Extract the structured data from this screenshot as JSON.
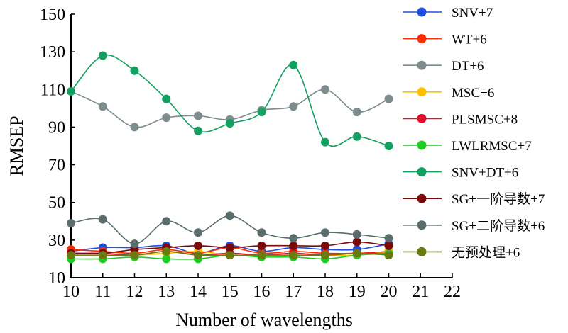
{
  "chart_data": {
    "type": "line",
    "xlabel": "Number of wavelengths",
    "ylabel": "RMSEP",
    "xlim": [
      10,
      22
    ],
    "ylim": [
      10,
      150
    ],
    "x_ticks": [
      10,
      11,
      12,
      13,
      14,
      15,
      16,
      17,
      18,
      19,
      20,
      21,
      22
    ],
    "y_ticks": [
      10,
      30,
      50,
      70,
      90,
      110,
      130,
      150
    ],
    "legend_position": "right",
    "grid": false,
    "x": [
      10,
      11,
      12,
      13,
      14,
      15,
      16,
      17,
      18,
      19,
      20
    ],
    "series": [
      {
        "name": "SNV+7",
        "color": "#1f4fe0",
        "values": [
          24,
          26,
          26,
          27,
          23,
          27,
          24,
          26,
          25,
          25,
          28
        ]
      },
      {
        "name": "WT+6",
        "color": "#ff2a00",
        "values": [
          25,
          24,
          23,
          25,
          23,
          26,
          23,
          24,
          23,
          23,
          24
        ]
      },
      {
        "name": "DT+6",
        "color": "#7d8c8c",
        "values": [
          109,
          101,
          90,
          95,
          96,
          94,
          99,
          101,
          110,
          98,
          105
        ]
      },
      {
        "name": "MSC+6",
        "color": "#ffc000",
        "values": [
          22,
          22,
          22,
          23,
          24,
          22,
          22,
          22,
          22,
          22,
          24
        ]
      },
      {
        "name": "PLSMSC+8",
        "color": "#e0102a",
        "values": [
          23,
          23,
          22,
          24,
          22,
          23,
          22,
          23,
          22,
          23,
          23
        ]
      },
      {
        "name": "LWLRMSC+7",
        "color": "#22cc22",
        "values": [
          20,
          20,
          21,
          20,
          20,
          22,
          21,
          21,
          20,
          22,
          23
        ]
      },
      {
        "name": "SNV+DT+6",
        "color": "#12a060",
        "values": [
          109,
          128,
          120,
          105,
          88,
          92,
          98,
          123,
          82,
          85,
          80
        ]
      },
      {
        "name": "SG+一阶导数+7",
        "color": "#7a0a0a",
        "values": [
          23,
          23,
          25,
          26,
          27,
          26,
          27,
          27,
          27,
          29,
          27
        ]
      },
      {
        "name": "SG+二阶导数+6",
        "color": "#5a6c6c",
        "values": [
          39,
          41,
          28,
          40,
          34,
          43,
          34,
          31,
          34,
          33,
          31
        ]
      },
      {
        "name": "无预处理+6",
        "color": "#6b7a10",
        "values": [
          22,
          22,
          22,
          24,
          22,
          22,
          22,
          22,
          22,
          23,
          22
        ]
      }
    ]
  }
}
